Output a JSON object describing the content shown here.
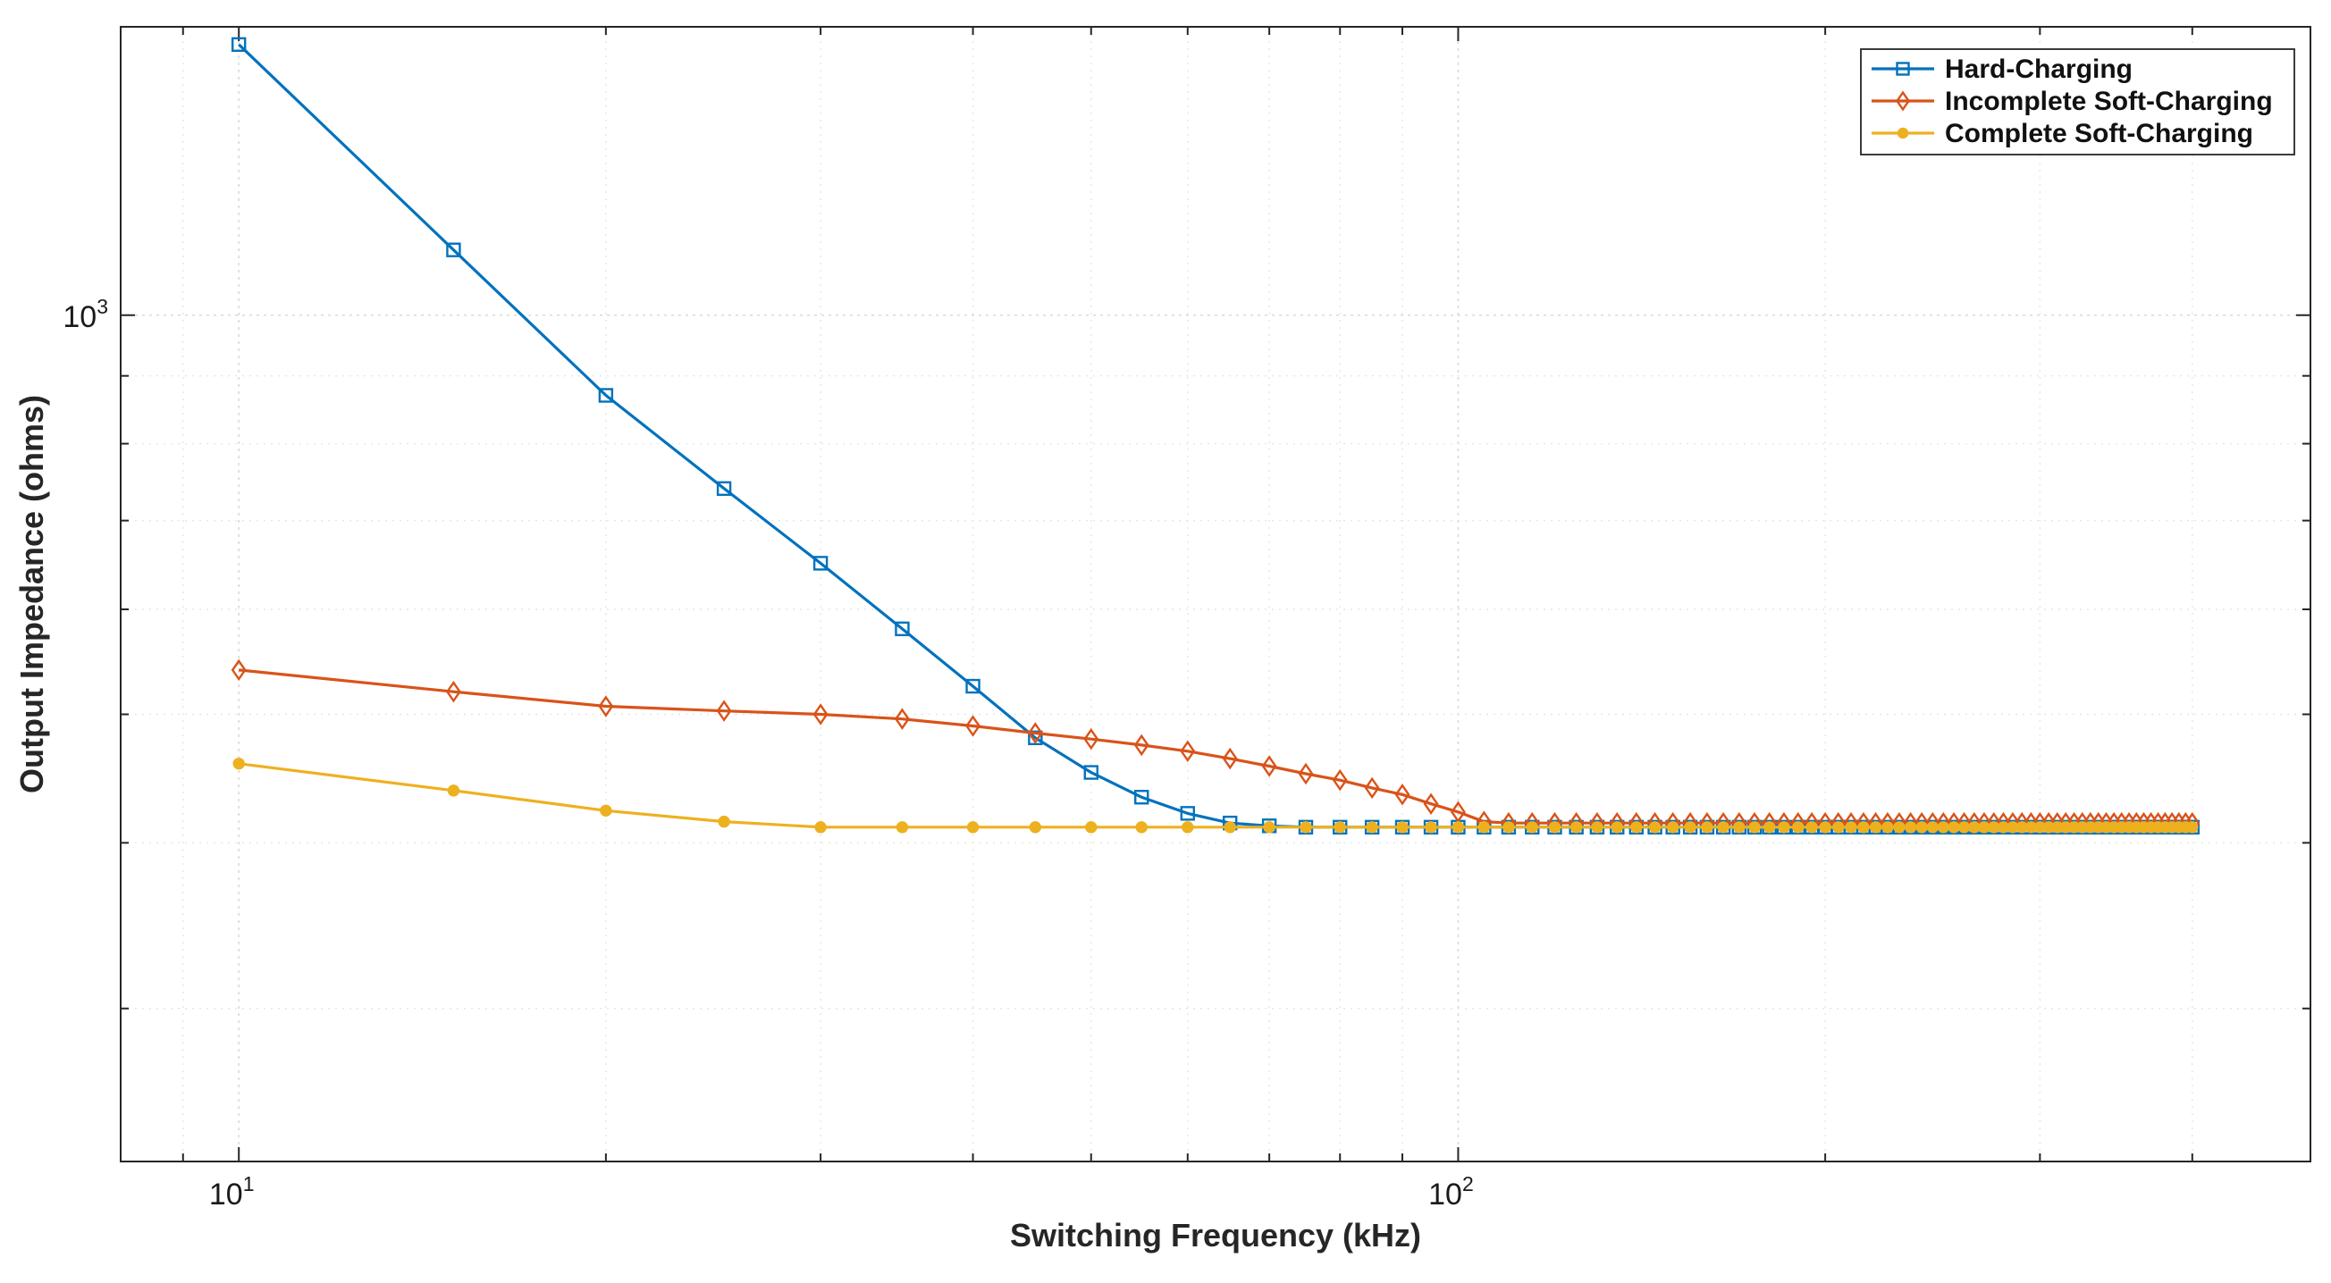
{
  "chart_data": {
    "type": "line",
    "title": "",
    "xlabel": "Switching Frequency (kHz)",
    "ylabel": "Output Impedance (ohms)",
    "xscale": "log",
    "yscale": "log",
    "xlim": [
      8,
      500
    ],
    "ylim": [
      230,
      1650
    ],
    "grid": true,
    "legend_position": "top-right",
    "x_ticks": [
      {
        "value": 10,
        "base": "10",
        "exp": "1"
      },
      {
        "value": 100,
        "base": "10",
        "exp": "2"
      }
    ],
    "y_ticks": [
      {
        "value": 1000,
        "base": "10",
        "exp": "3"
      }
    ],
    "series": [
      {
        "name": "Hard-Charging",
        "color": "#0072BD",
        "marker": "square",
        "points": [
          [
            10,
            1600
          ],
          [
            15,
            1120
          ],
          [
            20,
            870
          ],
          [
            25,
            740
          ],
          [
            30,
            650
          ],
          [
            35,
            580
          ],
          [
            40,
            525
          ],
          [
            45,
            480
          ],
          [
            50,
            452
          ],
          [
            55,
            433
          ],
          [
            60,
            421
          ],
          [
            65,
            414
          ],
          [
            70,
            412
          ],
          [
            75,
            411
          ],
          [
            80,
            411
          ],
          [
            85,
            411
          ],
          [
            90,
            411
          ],
          [
            95,
            411
          ],
          [
            100,
            411
          ],
          [
            105,
            411
          ],
          [
            110,
            411
          ],
          [
            115,
            411
          ],
          [
            120,
            411
          ],
          [
            125,
            411
          ],
          [
            130,
            411
          ],
          [
            135,
            411
          ],
          [
            140,
            411
          ],
          [
            145,
            411
          ],
          [
            150,
            411
          ],
          [
            155,
            411
          ],
          [
            160,
            411
          ],
          [
            165,
            411
          ],
          [
            170,
            411
          ],
          [
            175,
            411
          ],
          [
            180,
            411
          ],
          [
            185,
            411
          ],
          [
            190,
            411
          ],
          [
            195,
            411
          ],
          [
            200,
            411
          ],
          [
            205,
            411
          ],
          [
            210,
            411
          ],
          [
            215,
            411
          ],
          [
            220,
            411
          ],
          [
            225,
            411
          ],
          [
            230,
            411
          ],
          [
            235,
            411
          ],
          [
            240,
            411
          ],
          [
            245,
            411
          ],
          [
            250,
            411
          ],
          [
            255,
            411
          ],
          [
            260,
            411
          ],
          [
            265,
            411
          ],
          [
            270,
            411
          ],
          [
            275,
            411
          ],
          [
            280,
            411
          ],
          [
            285,
            411
          ],
          [
            290,
            411
          ],
          [
            295,
            411
          ],
          [
            300,
            411
          ],
          [
            305,
            411
          ],
          [
            310,
            411
          ],
          [
            315,
            411
          ],
          [
            320,
            411
          ],
          [
            325,
            411
          ],
          [
            330,
            411
          ],
          [
            335,
            411
          ],
          [
            340,
            411
          ],
          [
            345,
            411
          ],
          [
            350,
            411
          ],
          [
            355,
            411
          ],
          [
            360,
            411
          ],
          [
            365,
            411
          ],
          [
            370,
            411
          ],
          [
            375,
            411
          ],
          [
            380,
            411
          ],
          [
            385,
            411
          ],
          [
            390,
            411
          ],
          [
            395,
            411
          ],
          [
            400,
            411
          ]
        ]
      },
      {
        "name": "Incomplete Soft-Charging",
        "color": "#D95319",
        "marker": "diamond",
        "points": [
          [
            10,
            540
          ],
          [
            15,
            520
          ],
          [
            20,
            507
          ],
          [
            25,
            503
          ],
          [
            30,
            500
          ],
          [
            35,
            496
          ],
          [
            40,
            490
          ],
          [
            45,
            484
          ],
          [
            50,
            479
          ],
          [
            55,
            474
          ],
          [
            60,
            469
          ],
          [
            65,
            463
          ],
          [
            70,
            457
          ],
          [
            75,
            451
          ],
          [
            80,
            446
          ],
          [
            85,
            440
          ],
          [
            90,
            435
          ],
          [
            95,
            428
          ],
          [
            100,
            422
          ],
          [
            105,
            415
          ],
          [
            110,
            414
          ],
          [
            115,
            414
          ],
          [
            120,
            414
          ],
          [
            125,
            414
          ],
          [
            130,
            414
          ],
          [
            135,
            414
          ],
          [
            140,
            414
          ],
          [
            145,
            414
          ],
          [
            150,
            414
          ],
          [
            155,
            414
          ],
          [
            160,
            414
          ],
          [
            165,
            414
          ],
          [
            170,
            414
          ],
          [
            175,
            414
          ],
          [
            180,
            414
          ],
          [
            185,
            414
          ],
          [
            190,
            414
          ],
          [
            195,
            414
          ],
          [
            200,
            414
          ],
          [
            205,
            414
          ],
          [
            210,
            414
          ],
          [
            215,
            414
          ],
          [
            220,
            414
          ],
          [
            225,
            414
          ],
          [
            230,
            414
          ],
          [
            235,
            414
          ],
          [
            240,
            414
          ],
          [
            245,
            414
          ],
          [
            250,
            414
          ],
          [
            255,
            414
          ],
          [
            260,
            414
          ],
          [
            265,
            414
          ],
          [
            270,
            414
          ],
          [
            275,
            414
          ],
          [
            280,
            414
          ],
          [
            285,
            414
          ],
          [
            290,
            414
          ],
          [
            295,
            414
          ],
          [
            300,
            414
          ],
          [
            305,
            414
          ],
          [
            310,
            414
          ],
          [
            315,
            414
          ],
          [
            320,
            414
          ],
          [
            325,
            414
          ],
          [
            330,
            414
          ],
          [
            335,
            414
          ],
          [
            340,
            414
          ],
          [
            345,
            414
          ],
          [
            350,
            414
          ],
          [
            355,
            414
          ],
          [
            360,
            414
          ],
          [
            365,
            414
          ],
          [
            370,
            414
          ],
          [
            375,
            414
          ],
          [
            380,
            414
          ],
          [
            385,
            414
          ],
          [
            390,
            414
          ],
          [
            395,
            414
          ],
          [
            400,
            414
          ]
        ]
      },
      {
        "name": "Complete Soft-Charging",
        "color": "#EDB120",
        "marker": "circle",
        "points": [
          [
            10,
            459
          ],
          [
            15,
            438
          ],
          [
            20,
            423
          ],
          [
            25,
            415
          ],
          [
            30,
            411
          ],
          [
            35,
            411
          ],
          [
            40,
            411
          ],
          [
            45,
            411
          ],
          [
            50,
            411
          ],
          [
            55,
            411
          ],
          [
            60,
            411
          ],
          [
            65,
            411
          ],
          [
            70,
            411
          ],
          [
            75,
            411
          ],
          [
            80,
            411
          ],
          [
            85,
            411
          ],
          [
            90,
            411
          ],
          [
            95,
            411
          ],
          [
            100,
            411
          ],
          [
            105,
            411
          ],
          [
            110,
            411
          ],
          [
            115,
            411
          ],
          [
            120,
            411
          ],
          [
            125,
            411
          ],
          [
            130,
            411
          ],
          [
            135,
            411
          ],
          [
            140,
            411
          ],
          [
            145,
            411
          ],
          [
            150,
            411
          ],
          [
            155,
            411
          ],
          [
            160,
            411
          ],
          [
            165,
            411
          ],
          [
            170,
            411
          ],
          [
            175,
            411
          ],
          [
            180,
            411
          ],
          [
            185,
            411
          ],
          [
            190,
            411
          ],
          [
            195,
            411
          ],
          [
            200,
            411
          ],
          [
            205,
            411
          ],
          [
            210,
            411
          ],
          [
            215,
            411
          ],
          [
            220,
            411
          ],
          [
            225,
            411
          ],
          [
            230,
            411
          ],
          [
            235,
            411
          ],
          [
            240,
            411
          ],
          [
            245,
            411
          ],
          [
            250,
            411
          ],
          [
            255,
            411
          ],
          [
            260,
            411
          ],
          [
            265,
            411
          ],
          [
            270,
            411
          ],
          [
            275,
            411
          ],
          [
            280,
            411
          ],
          [
            285,
            411
          ],
          [
            290,
            411
          ],
          [
            295,
            411
          ],
          [
            300,
            411
          ],
          [
            305,
            411
          ],
          [
            310,
            411
          ],
          [
            315,
            411
          ],
          [
            320,
            411
          ],
          [
            325,
            411
          ],
          [
            330,
            411
          ],
          [
            335,
            411
          ],
          [
            340,
            411
          ],
          [
            345,
            411
          ],
          [
            350,
            411
          ],
          [
            355,
            411
          ],
          [
            360,
            411
          ],
          [
            365,
            411
          ],
          [
            370,
            411
          ],
          [
            375,
            411
          ],
          [
            380,
            411
          ],
          [
            385,
            411
          ],
          [
            390,
            411
          ],
          [
            395,
            411
          ],
          [
            400,
            411
          ]
        ]
      }
    ]
  }
}
